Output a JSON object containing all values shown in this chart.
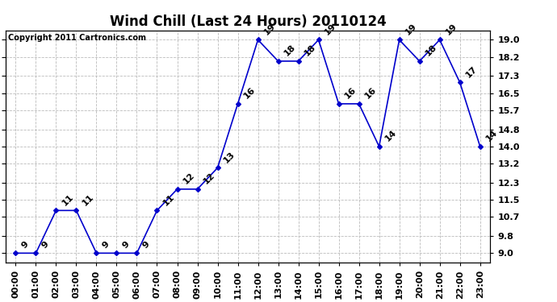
{
  "title": "Wind Chill (Last 24 Hours) 20110124",
  "copyright": "Copyright 2011 Cartronics.com",
  "hours": [
    "00:00",
    "01:00",
    "02:00",
    "03:00",
    "04:00",
    "05:00",
    "06:00",
    "07:00",
    "08:00",
    "09:00",
    "10:00",
    "11:00",
    "12:00",
    "13:00",
    "14:00",
    "15:00",
    "16:00",
    "17:00",
    "18:00",
    "19:00",
    "20:00",
    "21:00",
    "22:00",
    "23:00"
  ],
  "values": [
    9,
    9,
    11,
    11,
    9,
    9,
    9,
    11,
    12,
    12,
    13,
    16,
    19,
    18,
    18,
    19,
    16,
    16,
    14,
    19,
    18,
    19,
    17,
    14
  ],
  "line_color": "#0000cc",
  "marker_color": "#0000cc",
  "bg_color": "#ffffff",
  "grid_color": "#bbbbbb",
  "title_color": "#000000",
  "annot_color": "#000000",
  "right_label_color": "#000000",
  "yticks": [
    9.0,
    9.8,
    10.7,
    11.5,
    12.3,
    13.2,
    14.0,
    14.8,
    15.7,
    16.5,
    17.3,
    18.2,
    19.0
  ],
  "ylim": [
    8.55,
    19.45
  ],
  "title_fontsize": 12,
  "tick_fontsize": 8,
  "annotation_fontsize": 8,
  "copyright_fontsize": 7
}
